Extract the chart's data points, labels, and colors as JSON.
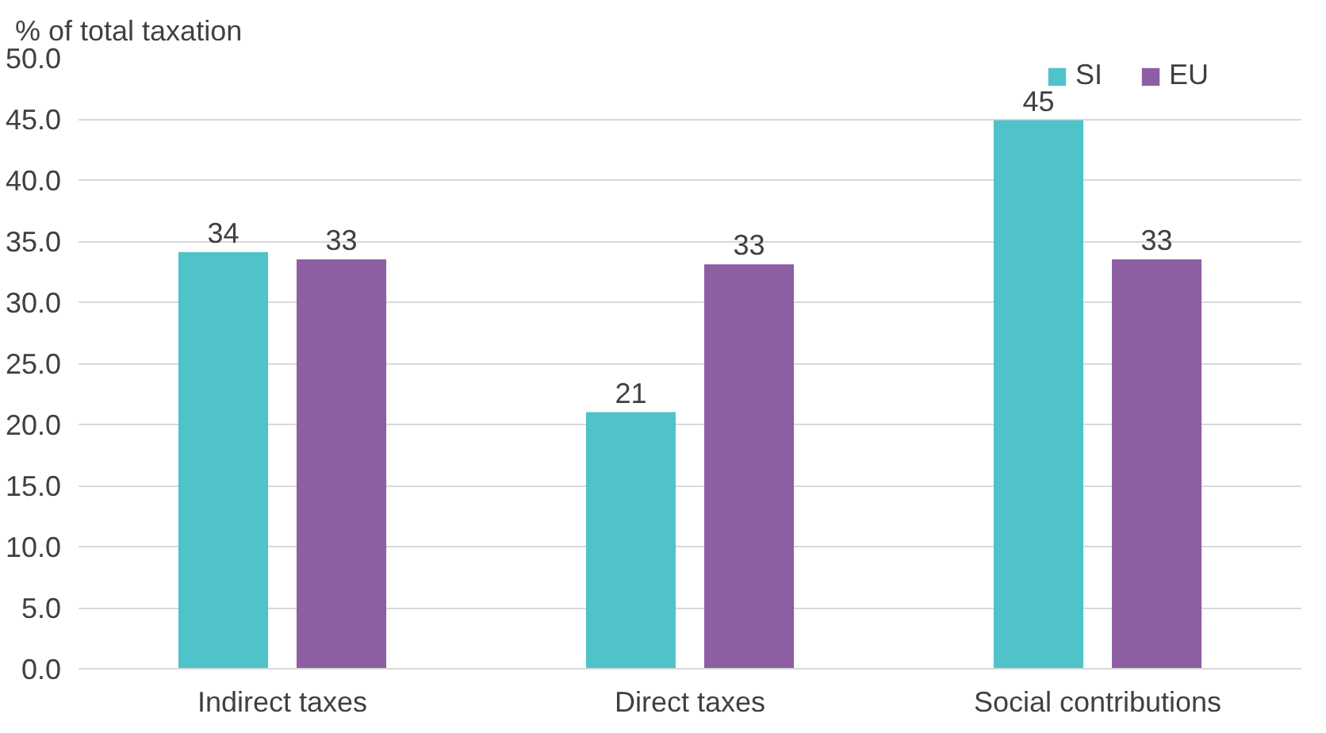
{
  "chart_data": {
    "type": "bar",
    "ylabel": "% of total taxation",
    "categories": [
      "Indirect taxes",
      "Direct taxes",
      "Social contributions"
    ],
    "series": [
      {
        "name": "SI",
        "color": "#4fc3c9",
        "values": [
          34.1,
          21.0,
          44.9
        ],
        "value_labels": [
          "34",
          "21",
          "45"
        ]
      },
      {
        "name": "EU",
        "color": "#8e5ea2",
        "values": [
          33.5,
          33.1,
          33.5
        ],
        "value_labels": [
          "33",
          "33",
          "33"
        ]
      }
    ],
    "ylim": [
      0,
      50
    ],
    "yticks": [
      {
        "value": 0,
        "label": "0.0"
      },
      {
        "value": 5,
        "label": "5.0"
      },
      {
        "value": 10,
        "label": "10.0"
      },
      {
        "value": 15,
        "label": "15.0"
      },
      {
        "value": 20,
        "label": "20.0"
      },
      {
        "value": 25,
        "label": "25.0"
      },
      {
        "value": 30,
        "label": "30.0"
      },
      {
        "value": 35,
        "label": "35.0"
      },
      {
        "value": 40,
        "label": "40.0"
      },
      {
        "value": 45,
        "label": "45.0"
      },
      {
        "value": 50,
        "label": "50.0"
      }
    ],
    "grid": "y",
    "legend": "top right"
  }
}
